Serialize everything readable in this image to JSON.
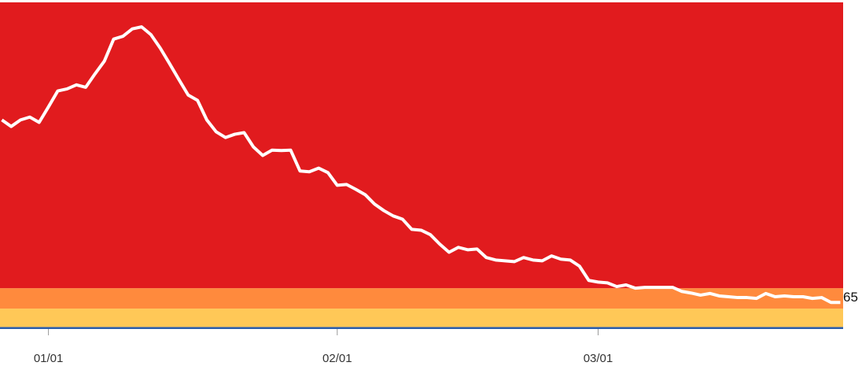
{
  "chart_data": {
    "type": "line",
    "x": [
      -5,
      -4,
      -3,
      -2,
      -1,
      0,
      1,
      2,
      3,
      4,
      5,
      6,
      7,
      8,
      9,
      10,
      11,
      12,
      13,
      14,
      15,
      16,
      17,
      18,
      19,
      20,
      21,
      22,
      23,
      24,
      25,
      26,
      27,
      28,
      29,
      30,
      31,
      32,
      33,
      34,
      35,
      36,
      37,
      38,
      39,
      40,
      41,
      42,
      43,
      44,
      45,
      46,
      47,
      48,
      49,
      50,
      51,
      52,
      53,
      54,
      55,
      56,
      57,
      58,
      59,
      60,
      61,
      62,
      63,
      64,
      65,
      66,
      67,
      68,
      69,
      70,
      71,
      72,
      73,
      74,
      75,
      76,
      77,
      78,
      79,
      80,
      81,
      82,
      83,
      84,
      85
    ],
    "series": [
      {
        "color": "#ffffff",
        "values": [
          512,
          496,
          512,
          519,
          506,
          544,
          583,
          588,
          598,
          592,
          625,
          656,
          710,
          717,
          735,
          740,
          721,
          688,
          650,
          611,
          573,
          560,
          512,
          483,
          469,
          477,
          481,
          446,
          425,
          438,
          437,
          438,
          387,
          385,
          394,
          383,
          352,
          354,
          342,
          329,
          306,
          290,
          277,
          269,
          244,
          242,
          231,
          208,
          188,
          200,
          194,
          196,
          175,
          169,
          167,
          165,
          175,
          169,
          167,
          179,
          171,
          169,
          154,
          119,
          115,
          113,
          104,
          108,
          100,
          102,
          102,
          102,
          102,
          92,
          88,
          83,
          87,
          81,
          79,
          77,
          77,
          75,
          87,
          79,
          81,
          79,
          79,
          75,
          77,
          65,
          65
        ]
      }
    ],
    "value_labels": {
      "90": "65"
    },
    "bands": [
      {
        "from": 0,
        "to": 5,
        "color": "#2a5caa"
      },
      {
        "from": 5,
        "to": 50,
        "color": "#ffc857"
      },
      {
        "from": 50,
        "to": 100,
        "color": "#ff8a3d"
      },
      {
        "from": 100,
        "to": 800,
        "color": "#e11b1e"
      }
    ],
    "xlim": [
      -5.2,
      85.3
    ],
    "xticks": [
      {
        "value": 0,
        "label": "01/01"
      },
      {
        "value": 31,
        "label": "02/01"
      },
      {
        "value": 59,
        "label": "03/01"
      }
    ],
    "ylim": [
      0,
      800
    ]
  }
}
